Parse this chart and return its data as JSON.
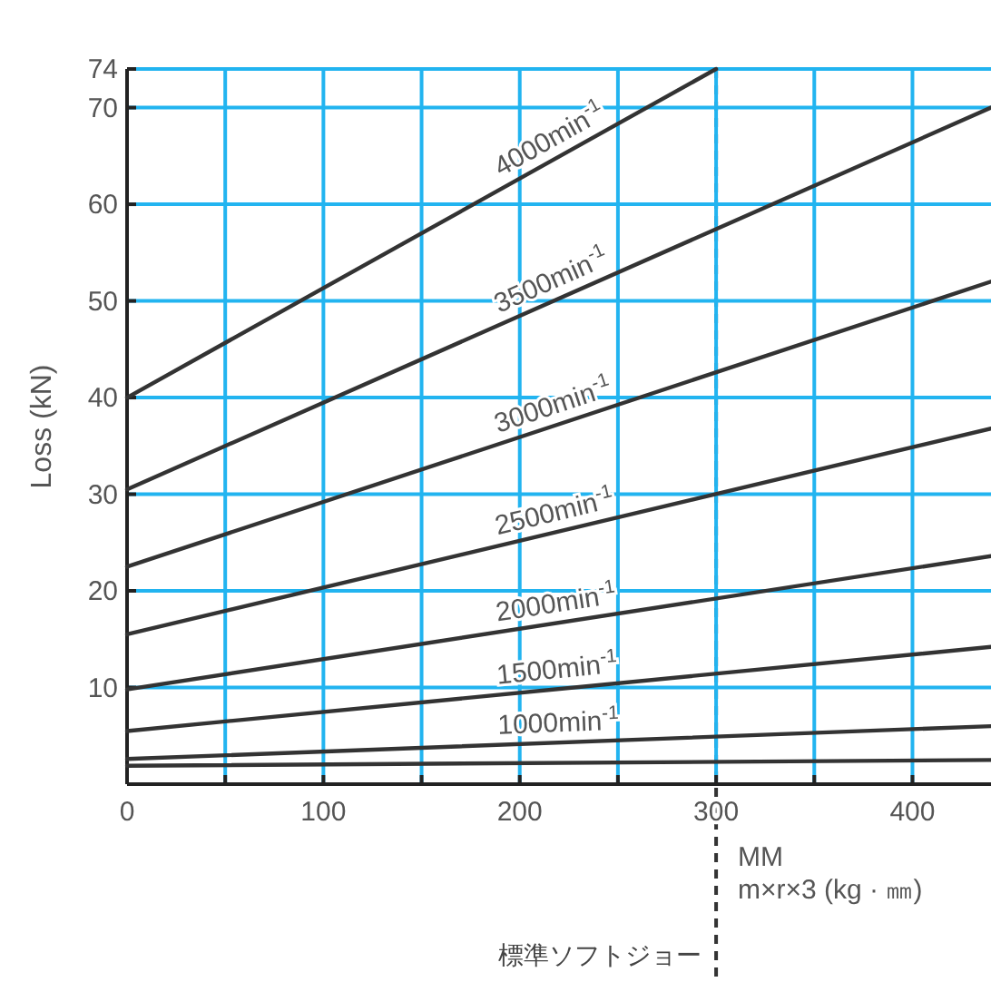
{
  "chart_data": {
    "type": "line",
    "xlabel": "MM\nm×r×3 (kg · ㎜)",
    "ylabel": "Loss (kN)",
    "xlim": [
      0,
      440
    ],
    "ylim": [
      0,
      74
    ],
    "xticks": [
      0,
      {
        "value": 50,
        "label": null
      },
      100,
      {
        "value": 150,
        "label": null
      },
      200,
      {
        "value": 250,
        "label": null
      },
      300,
      {
        "value": 350,
        "label": null
      },
      400
    ],
    "yticks": [
      10,
      20,
      30,
      40,
      50,
      60,
      70,
      74
    ],
    "grid": true,
    "legend": false,
    "marker": "none",
    "series": [
      {
        "name": "4000min$^{-1}$",
        "color": "#333333",
        "x": [
          0,
          300
        ],
        "values": [
          40,
          74
        ]
      },
      {
        "name": "3500min$^{-1}$",
        "color": "#333333",
        "x": [
          0,
          440
        ],
        "values": [
          30.5,
          70
        ]
      },
      {
        "name": "3000min$^{-1}$",
        "color": "#333333",
        "x": [
          0,
          440
        ],
        "values": [
          22.5,
          52
        ]
      },
      {
        "name": "2500min$^{-1}$",
        "color": "#333333",
        "x": [
          0,
          440
        ],
        "values": [
          15.5,
          36.8
        ]
      },
      {
        "name": "2000min$^{-1}$",
        "color": "#333333",
        "x": [
          0,
          440
        ],
        "values": [
          9.8,
          23.6
        ]
      },
      {
        "name": "1500min$^{-1}$",
        "color": "#333333",
        "x": [
          0,
          440
        ],
        "values": [
          5.5,
          14.2
        ]
      },
      {
        "name": "1000min$^{-1}$",
        "color": "#333333",
        "x": [
          0,
          440
        ],
        "values": [
          2.6,
          6.0
        ]
      },
      {
        "color": "#333333",
        "x": [
          0,
          440
        ],
        "values": [
          1.9,
          2.5
        ]
      }
    ],
    "ref_lines": [
      {
        "axis": "x",
        "value": 300,
        "label": "標準ソフトジョー",
        "line_style": "dashed",
        "color": "#333333"
      }
    ]
  }
}
